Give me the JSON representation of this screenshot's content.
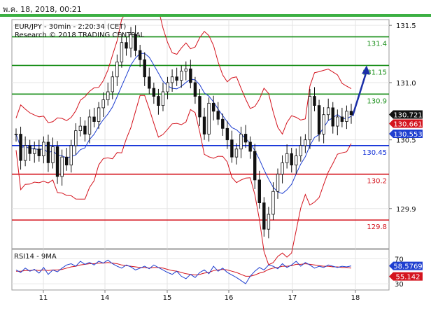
{
  "header": {
    "timestamp": "พ.ค. 18, 2018, 00:21"
  },
  "chart_data": {
    "type": "candlestick",
    "title": "EUR/JPY - 30min - 2:20:34 (CET)",
    "subtitle": "Research © 2018 TRADING CENTRAL",
    "price_ticks": [
      "131.5",
      "131.0",
      "130.5",
      "129.9"
    ],
    "price_tick_values": [
      131.5,
      131.0,
      130.5,
      129.9
    ],
    "ylim": [
      129.55,
      131.55
    ],
    "x_ticks": [
      "11",
      "14",
      "15",
      "16",
      "17",
      "18"
    ],
    "levels": [
      {
        "label": "131.4",
        "value": 131.4,
        "color": "#1a8f1a"
      },
      {
        "label": "131.15",
        "value": 131.15,
        "color": "#1a8f1a"
      },
      {
        "label": "130.9",
        "value": 130.9,
        "color": "#1a8f1a"
      },
      {
        "label": "130.45",
        "value": 130.45,
        "color": "#0b2ad6"
      },
      {
        "label": "130.2",
        "value": 130.2,
        "color": "#d4141e"
      },
      {
        "label": "129.8",
        "value": 129.8,
        "color": "#d4141e"
      }
    ],
    "badges": [
      {
        "label": "130.721",
        "value": 130.721,
        "bg": "#111111"
      },
      {
        "label": "130.661",
        "value": 130.661,
        "bg": "#d4141e"
      },
      {
        "label": "130.553",
        "value": 130.553,
        "bg": "#1f3fd0"
      }
    ],
    "price_path": [
      130.55,
      130.32,
      130.45,
      130.38,
      130.42,
      130.36,
      130.48,
      130.3,
      130.44,
      130.18,
      130.35,
      130.28,
      130.45,
      130.58,
      130.62,
      130.55,
      130.7,
      130.66,
      130.78,
      130.85,
      130.92,
      131.05,
      131.18,
      131.35,
      131.3,
      131.42,
      131.28,
      131.2,
      131.05,
      130.95,
      130.88,
      130.8,
      130.92,
      131.0,
      131.05,
      131.02,
      131.1,
      131.12,
      131.0,
      130.88,
      130.7,
      130.55,
      130.82,
      130.75,
      130.68,
      130.6,
      130.5,
      130.35,
      130.42,
      130.55,
      130.48,
      130.4,
      130.15,
      129.95,
      129.72,
      129.85,
      130.05,
      130.2,
      130.3,
      130.38,
      130.28,
      130.36,
      130.45,
      130.5,
      130.88,
      130.8,
      130.55,
      130.72,
      130.78,
      130.62,
      130.7,
      130.66,
      130.75,
      130.72
    ],
    "arrow": {
      "from": [
        130.71
      ],
      "to": [
        131.15
      ]
    },
    "rsi": {
      "label": "RSI14 - 9MA",
      "ticks": [
        "70",
        "30"
      ],
      "tick_values": [
        70,
        30
      ],
      "ylim": [
        20,
        85
      ],
      "rsi_value_label": "58.5769",
      "ma_value_label": "55.142",
      "rsi_color": "#1f3fd0",
      "ma_color": "#d4141e",
      "rsi_path": [
        52,
        48,
        55,
        50,
        53,
        47,
        56,
        45,
        52,
        49,
        55,
        60,
        62,
        58,
        66,
        61,
        64,
        60,
        66,
        63,
        68,
        62,
        58,
        55,
        60,
        57,
        52,
        55,
        58,
        54,
        60,
        56,
        52,
        48,
        45,
        50,
        42,
        38,
        45,
        40,
        48,
        52,
        46,
        58,
        50,
        55,
        48,
        44,
        40,
        35,
        30,
        42,
        50,
        56,
        52,
        60,
        58,
        54,
        62,
        56,
        60,
        66,
        58,
        64,
        60,
        55,
        58,
        56,
        60,
        58,
        56,
        58,
        57,
        58.6
      ],
      "ma_path": [
        50,
        50,
        51,
        51,
        52,
        51,
        52,
        51,
        52,
        52,
        53,
        55,
        57,
        58,
        60,
        61,
        62,
        62,
        63,
        63,
        64,
        63,
        62,
        60,
        59,
        58,
        57,
        56,
        56,
        55,
        56,
        56,
        55,
        53,
        51,
        50,
        48,
        46,
        45,
        44,
        45,
        47,
        48,
        51,
        52,
        53,
        52,
        50,
        48,
        45,
        42,
        42,
        44,
        47,
        49,
        53,
        55,
        56,
        58,
        58,
        59,
        61,
        61,
        62,
        61,
        60,
        59,
        58,
        58,
        57,
        57,
        56,
        56,
        55.1
      ]
    }
  }
}
